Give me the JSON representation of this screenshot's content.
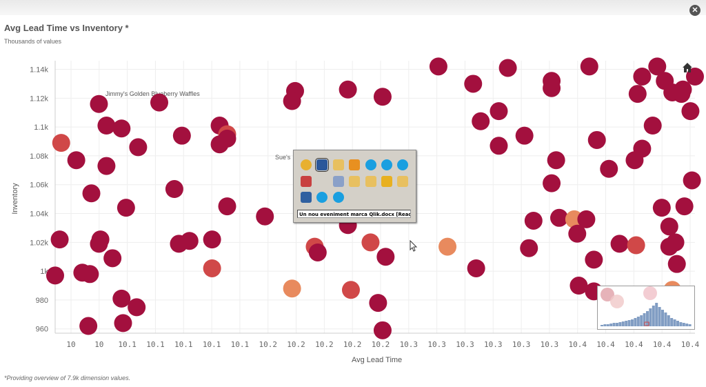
{
  "window": {
    "close_label": "✕"
  },
  "header": {
    "title": "Avg Lead Time vs Inventory *",
    "subtitle": "Thousands of values"
  },
  "footer": {
    "note": "*Providing overview of 7.9k dimension values."
  },
  "chart_data": {
    "type": "scatter",
    "title": "Avg Lead Time vs Inventory *",
    "subtitle": "Thousands of values",
    "xlabel": "Avg Lead Time",
    "ylabel": "Inventory",
    "x_tick_labels": [
      "10",
      "10",
      "10.1",
      "10.1",
      "10.1",
      "10.1",
      "10.1",
      "10.2",
      "10.2",
      "10.2",
      "10.2",
      "10.2",
      "10.3",
      "10.3",
      "10.3",
      "10.3",
      "10.3",
      "10.3",
      "10.4",
      "10.4",
      "10.4",
      "10.4",
      "10.4"
    ],
    "y_tick_labels": [
      "960",
      "980",
      "1k",
      "1.02k",
      "1.04k",
      "1.06k",
      "1.08k",
      "1.1k",
      "1.12k",
      "1.14k"
    ],
    "xlim": [
      9.976,
      10.4
    ],
    "ylim": [
      957,
      1146
    ],
    "grid": true,
    "annotations": [
      "Jimmy's Golden Blueberry Waffles",
      "Sue's"
    ],
    "colors": {
      "dark": "#a3103e",
      "mid": "#d04848",
      "light": "#e88a5e"
    },
    "points": [
      {
        "x": 9.98,
        "y": 1089,
        "c": "mid"
      },
      {
        "x": 9.99,
        "y": 1077,
        "c": "dark"
      },
      {
        "x": 10.005,
        "y": 1116,
        "c": "dark"
      },
      {
        "x": 10.01,
        "y": 1101,
        "c": "dark"
      },
      {
        "x": 10.01,
        "y": 1073,
        "c": "dark"
      },
      {
        "x": 10.02,
        "y": 1099,
        "c": "dark"
      },
      {
        "x": 10.031,
        "y": 1086,
        "c": "dark"
      },
      {
        "x": 10.045,
        "y": 1117,
        "c": "dark"
      },
      {
        "x": 10.0,
        "y": 1054,
        "c": "dark"
      },
      {
        "x": 10.023,
        "y": 1044,
        "c": "dark"
      },
      {
        "x": 9.979,
        "y": 1022,
        "c": "dark"
      },
      {
        "x": 10.006,
        "y": 1022,
        "c": "dark"
      },
      {
        "x": 10.005,
        "y": 1019,
        "c": "dark"
      },
      {
        "x": 10.014,
        "y": 1009,
        "c": "dark"
      },
      {
        "x": 9.994,
        "y": 999,
        "c": "dark"
      },
      {
        "x": 9.999,
        "y": 998,
        "c": "dark"
      },
      {
        "x": 9.976,
        "y": 997,
        "c": "dark"
      },
      {
        "x": 10.02,
        "y": 981,
        "c": "dark"
      },
      {
        "x": 10.03,
        "y": 975,
        "c": "dark"
      },
      {
        "x": 10.021,
        "y": 964,
        "c": "dark"
      },
      {
        "x": 9.998,
        "y": 962,
        "c": "dark"
      },
      {
        "x": 10.055,
        "y": 1057,
        "c": "dark"
      },
      {
        "x": 10.06,
        "y": 1094,
        "c": "dark"
      },
      {
        "x": 10.058,
        "y": 1019,
        "c": "dark"
      },
      {
        "x": 10.065,
        "y": 1021,
        "c": "dark"
      },
      {
        "x": 10.08,
        "y": 1022,
        "c": "dark"
      },
      {
        "x": 10.08,
        "y": 1002,
        "c": "mid"
      },
      {
        "x": 10.085,
        "y": 1101,
        "c": "dark"
      },
      {
        "x": 10.09,
        "y": 1095,
        "c": "mid"
      },
      {
        "x": 10.09,
        "y": 1092,
        "c": "dark"
      },
      {
        "x": 10.085,
        "y": 1088,
        "c": "dark"
      },
      {
        "x": 10.09,
        "y": 1045,
        "c": "dark"
      },
      {
        "x": 10.115,
        "y": 1038,
        "c": "dark"
      },
      {
        "x": 10.135,
        "y": 1125,
        "c": "dark"
      },
      {
        "x": 10.133,
        "y": 1118,
        "c": "dark"
      },
      {
        "x": 10.133,
        "y": 988,
        "c": "light"
      },
      {
        "x": 10.148,
        "y": 1060,
        "c": "dark"
      },
      {
        "x": 10.148,
        "y": 1017,
        "c": "mid"
      },
      {
        "x": 10.15,
        "y": 1013,
        "c": "dark"
      },
      {
        "x": 10.17,
        "y": 1126,
        "c": "dark"
      },
      {
        "x": 10.17,
        "y": 1032,
        "c": "dark"
      },
      {
        "x": 10.172,
        "y": 987,
        "c": "mid"
      },
      {
        "x": 10.185,
        "y": 1020,
        "c": "mid"
      },
      {
        "x": 10.19,
        "y": 978,
        "c": "dark"
      },
      {
        "x": 10.193,
        "y": 1121,
        "c": "dark"
      },
      {
        "x": 10.195,
        "y": 1010,
        "c": "dark"
      },
      {
        "x": 10.193,
        "y": 959,
        "c": "dark"
      },
      {
        "x": 10.23,
        "y": 1142,
        "c": "dark"
      },
      {
        "x": 10.236,
        "y": 1017,
        "c": "light"
      },
      {
        "x": 10.253,
        "y": 1130,
        "c": "dark"
      },
      {
        "x": 10.255,
        "y": 1002,
        "c": "dark"
      },
      {
        "x": 10.258,
        "y": 1104,
        "c": "dark"
      },
      {
        "x": 10.27,
        "y": 1111,
        "c": "dark"
      },
      {
        "x": 10.27,
        "y": 1087,
        "c": "dark"
      },
      {
        "x": 10.276,
        "y": 1141,
        "c": "dark"
      },
      {
        "x": 10.287,
        "y": 1094,
        "c": "dark"
      },
      {
        "x": 10.293,
        "y": 1035,
        "c": "dark"
      },
      {
        "x": 10.29,
        "y": 1016,
        "c": "dark"
      },
      {
        "x": 10.305,
        "y": 1132,
        "c": "dark"
      },
      {
        "x": 10.305,
        "y": 1127,
        "c": "dark"
      },
      {
        "x": 10.308,
        "y": 1077,
        "c": "dark"
      },
      {
        "x": 10.305,
        "y": 1061,
        "c": "dark"
      },
      {
        "x": 10.31,
        "y": 1037,
        "c": "dark"
      },
      {
        "x": 10.32,
        "y": 1036,
        "c": "light"
      },
      {
        "x": 10.33,
        "y": 1142,
        "c": "dark"
      },
      {
        "x": 10.335,
        "y": 1091,
        "c": "dark"
      },
      {
        "x": 10.343,
        "y": 1071,
        "c": "dark"
      },
      {
        "x": 10.328,
        "y": 1036,
        "c": "dark"
      },
      {
        "x": 10.322,
        "y": 1026,
        "c": "dark"
      },
      {
        "x": 10.333,
        "y": 1008,
        "c": "dark"
      },
      {
        "x": 10.323,
        "y": 990,
        "c": "dark"
      },
      {
        "x": 10.333,
        "y": 986,
        "c": "dark"
      },
      {
        "x": 10.35,
        "y": 1019,
        "c": "dark"
      },
      {
        "x": 10.365,
        "y": 1135,
        "c": "dark"
      },
      {
        "x": 10.362,
        "y": 1123,
        "c": "dark"
      },
      {
        "x": 10.365,
        "y": 1085,
        "c": "dark"
      },
      {
        "x": 10.36,
        "y": 1077,
        "c": "dark"
      },
      {
        "x": 10.361,
        "y": 1018,
        "c": "mid"
      },
      {
        "x": 10.375,
        "y": 1142,
        "c": "dark"
      },
      {
        "x": 10.38,
        "y": 1132,
        "c": "dark"
      },
      {
        "x": 10.385,
        "y": 1124,
        "c": "dark"
      },
      {
        "x": 10.372,
        "y": 1101,
        "c": "dark"
      },
      {
        "x": 10.378,
        "y": 1044,
        "c": "dark"
      },
      {
        "x": 10.383,
        "y": 1031,
        "c": "dark"
      },
      {
        "x": 10.383,
        "y": 1017,
        "c": "dark"
      },
      {
        "x": 10.387,
        "y": 1020,
        "c": "dark"
      },
      {
        "x": 10.392,
        "y": 1126,
        "c": "dark"
      },
      {
        "x": 10.397,
        "y": 1111,
        "c": "dark"
      },
      {
        "x": 10.391,
        "y": 1123,
        "c": "dark"
      },
      {
        "x": 10.36,
        "y": 979,
        "c": "dark"
      },
      {
        "x": 10.4,
        "y": 1135,
        "c": "dark"
      },
      {
        "x": 10.393,
        "y": 1045,
        "c": "dark"
      },
      {
        "x": 10.398,
        "y": 1063,
        "c": "dark"
      },
      {
        "x": 10.388,
        "y": 1005,
        "c": "dark"
      },
      {
        "x": 10.385,
        "y": 987,
        "c": "light"
      }
    ]
  },
  "taskbar_popup": {
    "caption": "Un nou eveniment marca Qlik.docx [Read-Only] - ...",
    "icons": [
      "chrome-icon",
      "word-icon",
      "envelope-icon",
      "outlook-icon",
      "chat-icon",
      "chat-icon",
      "skype-icon",
      "app-icon",
      "window-icon",
      "envelope-icon",
      "envelope-icon",
      "bell-icon",
      "folder-icon",
      "network-icon",
      "chat-icon",
      "chat-icon"
    ]
  }
}
